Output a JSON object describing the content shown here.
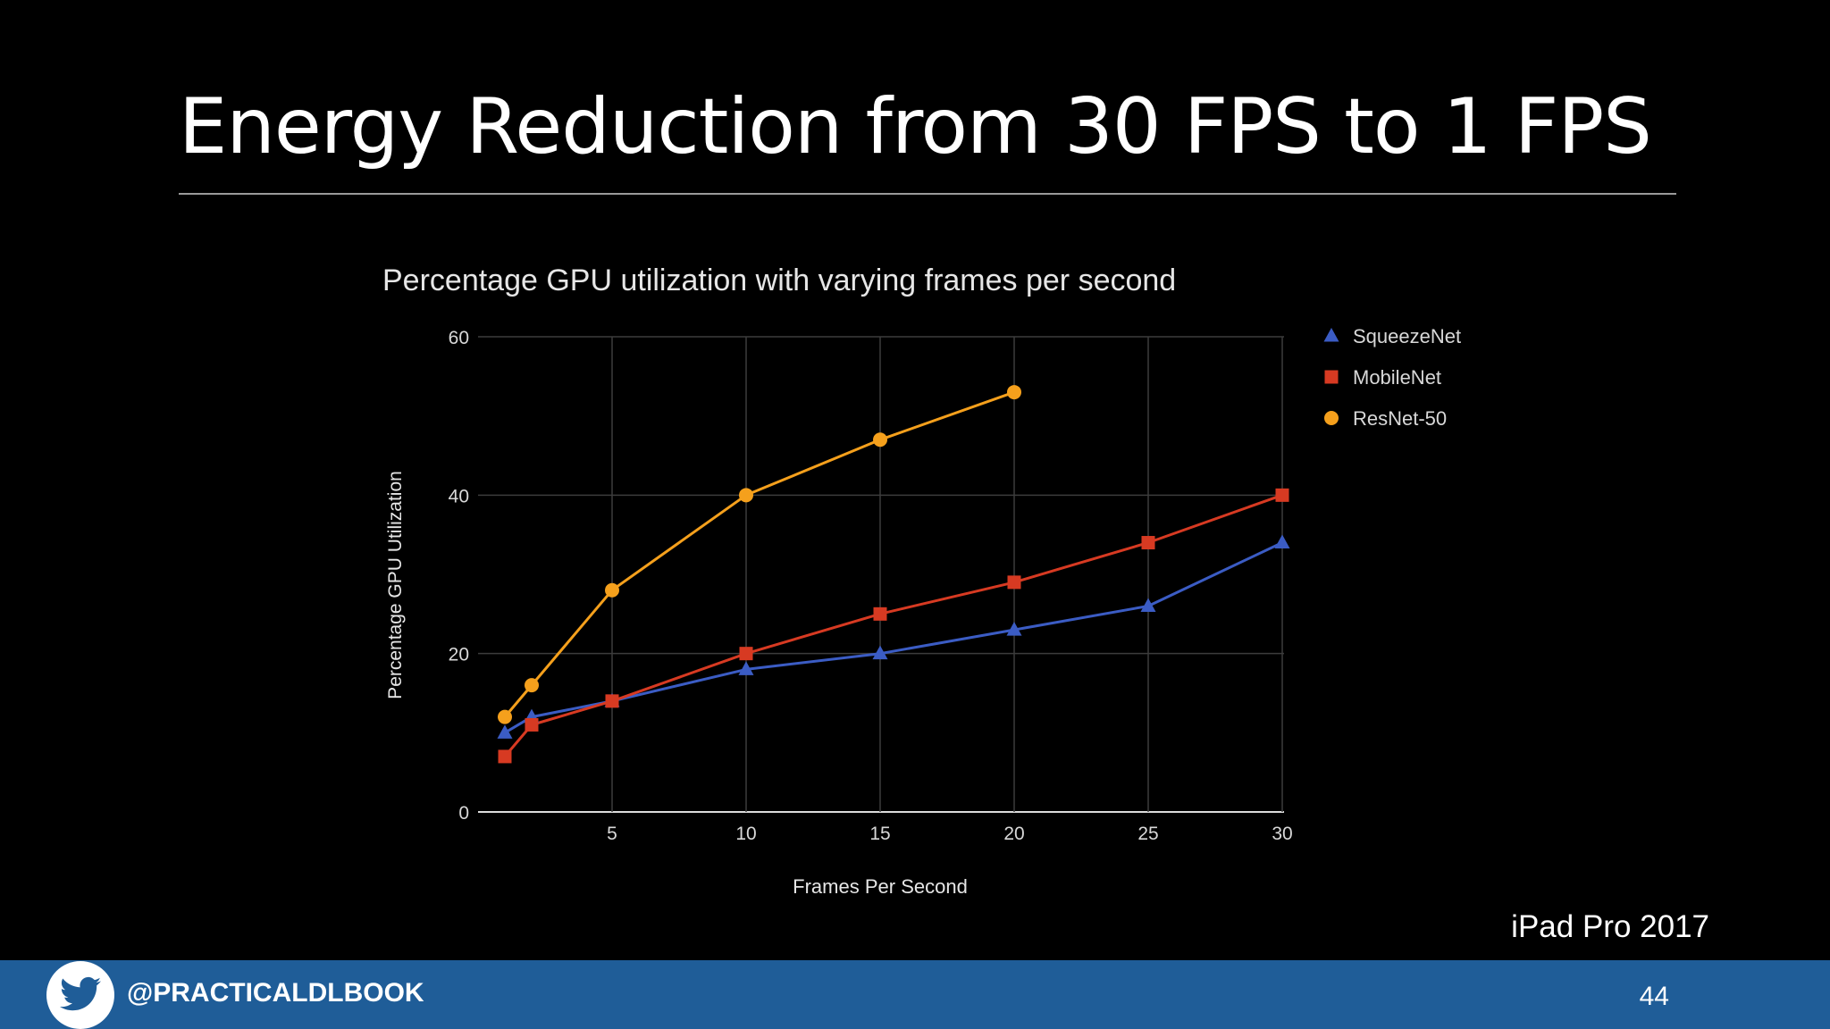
{
  "slide": {
    "title": "Energy Reduction from 30 FPS to 1 FPS",
    "device_label": "iPad Pro 2017",
    "footer": {
      "handle": "@PRACTICALDLBOOK",
      "page_number": "44",
      "icon": "twitter-bird-icon"
    }
  },
  "chart_data": {
    "type": "line",
    "title": "Percentage GPU utilization with varying frames per second",
    "xlabel": "Frames Per Second",
    "ylabel": "Percentage GPU Utilization",
    "xlim": [
      0,
      30
    ],
    "ylim": [
      0,
      60
    ],
    "xticks": [
      5,
      10,
      15,
      20,
      25,
      30
    ],
    "yticks": [
      0,
      20,
      40,
      60
    ],
    "grid": true,
    "legend_position": "right",
    "series": [
      {
        "name": "SqueezeNet",
        "color": "#3b5cc4",
        "marker": "triangle",
        "points": [
          [
            1,
            10
          ],
          [
            2,
            12
          ],
          [
            5,
            14
          ],
          [
            10,
            18
          ],
          [
            15,
            20
          ],
          [
            20,
            23
          ],
          [
            25,
            26
          ],
          [
            30,
            34
          ]
        ]
      },
      {
        "name": "MobileNet",
        "color": "#d73a22",
        "marker": "square",
        "points": [
          [
            1,
            7
          ],
          [
            2,
            11
          ],
          [
            5,
            14
          ],
          [
            10,
            20
          ],
          [
            15,
            25
          ],
          [
            20,
            29
          ],
          [
            25,
            34
          ],
          [
            30,
            40
          ]
        ]
      },
      {
        "name": "ResNet-50",
        "color": "#f5a01c",
        "marker": "circle",
        "points": [
          [
            1,
            12
          ],
          [
            2,
            16
          ],
          [
            5,
            28
          ],
          [
            10,
            40
          ],
          [
            15,
            47
          ],
          [
            20,
            53
          ]
        ]
      }
    ]
  }
}
